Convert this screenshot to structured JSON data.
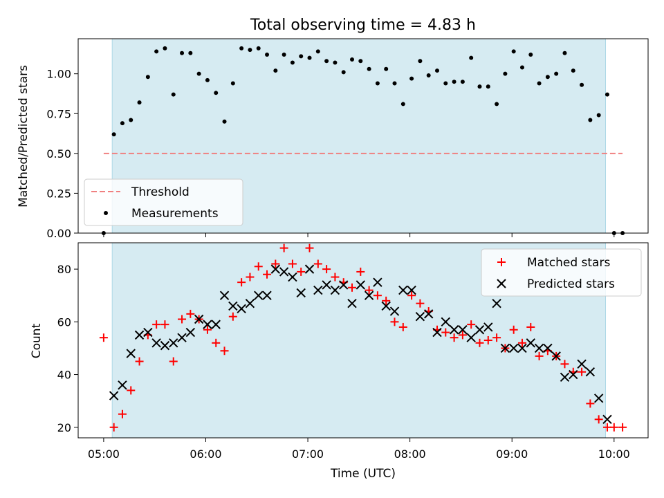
{
  "figure_title": "Total observing time = 4.83 h",
  "chart_data": [
    {
      "type": "scatter",
      "ylabel": "Matched/Predicted stars",
      "xlim": [
        "04:45",
        "10:20"
      ],
      "ylim": [
        0,
        1.22
      ],
      "yticks": [
        "0.00",
        "0.25",
        "0.50",
        "0.75",
        "1.00"
      ],
      "shaded_span": [
        "05:05",
        "09:55"
      ],
      "legend_position": "lower-left",
      "threshold": {
        "name": "Threshold",
        "y": 0.5,
        "x_range": [
          "05:00",
          "10:05"
        ],
        "color": "#f08080",
        "style": "dashed"
      },
      "measurements": {
        "name": "Measurements",
        "color": "#000000",
        "points": [
          [
            "05:00",
            0.0
          ],
          [
            "05:06",
            0.62
          ],
          [
            "05:11",
            0.69
          ],
          [
            "05:16",
            0.71
          ],
          [
            "05:21",
            0.82
          ],
          [
            "05:26",
            0.98
          ],
          [
            "05:31",
            1.14
          ],
          [
            "05:36",
            1.16
          ],
          [
            "05:41",
            0.87
          ],
          [
            "05:46",
            1.13
          ],
          [
            "05:51",
            1.13
          ],
          [
            "05:56",
            1.0
          ],
          [
            "06:01",
            0.96
          ],
          [
            "06:06",
            0.88
          ],
          [
            "06:11",
            0.7
          ],
          [
            "06:16",
            0.94
          ],
          [
            "06:21",
            1.16
          ],
          [
            "06:26",
            1.15
          ],
          [
            "06:31",
            1.16
          ],
          [
            "06:36",
            1.12
          ],
          [
            "06:41",
            1.02
          ],
          [
            "06:46",
            1.12
          ],
          [
            "06:51",
            1.07
          ],
          [
            "06:56",
            1.11
          ],
          [
            "07:01",
            1.1
          ],
          [
            "07:06",
            1.14
          ],
          [
            "07:11",
            1.08
          ],
          [
            "07:16",
            1.07
          ],
          [
            "07:21",
            1.01
          ],
          [
            "07:26",
            1.09
          ],
          [
            "07:31",
            1.08
          ],
          [
            "07:36",
            1.03
          ],
          [
            "07:41",
            0.94
          ],
          [
            "07:46",
            1.03
          ],
          [
            "07:51",
            0.94
          ],
          [
            "07:56",
            0.81
          ],
          [
            "08:01",
            0.97
          ],
          [
            "08:06",
            1.08
          ],
          [
            "08:11",
            0.99
          ],
          [
            "08:16",
            1.02
          ],
          [
            "08:21",
            0.94
          ],
          [
            "08:26",
            0.95
          ],
          [
            "08:31",
            0.95
          ],
          [
            "08:36",
            1.1
          ],
          [
            "08:41",
            0.92
          ],
          [
            "08:46",
            0.92
          ],
          [
            "08:51",
            0.81
          ],
          [
            "08:56",
            1.0
          ],
          [
            "09:01",
            1.14
          ],
          [
            "09:06",
            1.04
          ],
          [
            "09:11",
            1.12
          ],
          [
            "09:16",
            0.94
          ],
          [
            "09:21",
            0.98
          ],
          [
            "09:26",
            1.0
          ],
          [
            "09:31",
            1.13
          ],
          [
            "09:36",
            1.02
          ],
          [
            "09:41",
            0.93
          ],
          [
            "09:46",
            0.71
          ],
          [
            "09:51",
            0.74
          ],
          [
            "09:56",
            0.87
          ],
          [
            "10:00",
            0.0
          ],
          [
            "10:05",
            0.0
          ]
        ]
      }
    },
    {
      "type": "scatter",
      "xlabel": "Time (UTC)",
      "ylabel": "Count",
      "xlim": [
        "04:45",
        "10:20"
      ],
      "ylim": [
        16,
        90
      ],
      "xticks": [
        "05:00",
        "06:00",
        "07:00",
        "08:00",
        "09:00",
        "10:00"
      ],
      "yticks": [
        "20",
        "40",
        "60",
        "80"
      ],
      "shaded_span": [
        "05:05",
        "09:55"
      ],
      "legend_position": "upper-right",
      "series": [
        {
          "name": "Matched stars",
          "marker": "plus",
          "color": "#ff0000",
          "points": [
            [
              "05:00",
              54
            ],
            [
              "05:06",
              20
            ],
            [
              "05:11",
              25
            ],
            [
              "05:16",
              34
            ],
            [
              "05:21",
              45
            ],
            [
              "05:26",
              55
            ],
            [
              "05:31",
              59
            ],
            [
              "05:36",
              59
            ],
            [
              "05:41",
              45
            ],
            [
              "05:46",
              61
            ],
            [
              "05:51",
              63
            ],
            [
              "05:56",
              61
            ],
            [
              "06:01",
              57
            ],
            [
              "06:06",
              52
            ],
            [
              "06:11",
              49
            ],
            [
              "06:16",
              62
            ],
            [
              "06:21",
              75
            ],
            [
              "06:26",
              77
            ],
            [
              "06:31",
              81
            ],
            [
              "06:36",
              78
            ],
            [
              "06:41",
              82
            ],
            [
              "06:46",
              88
            ],
            [
              "06:51",
              82
            ],
            [
              "06:56",
              79
            ],
            [
              "07:01",
              88
            ],
            [
              "07:06",
              82
            ],
            [
              "07:11",
              80
            ],
            [
              "07:16",
              77
            ],
            [
              "07:21",
              75
            ],
            [
              "07:26",
              73
            ],
            [
              "07:31",
              79
            ],
            [
              "07:36",
              72
            ],
            [
              "07:41",
              70
            ],
            [
              "07:46",
              68
            ],
            [
              "07:51",
              60
            ],
            [
              "07:56",
              58
            ],
            [
              "08:01",
              70
            ],
            [
              "08:06",
              67
            ],
            [
              "08:11",
              64
            ],
            [
              "08:16",
              57
            ],
            [
              "08:21",
              56
            ],
            [
              "08:26",
              54
            ],
            [
              "08:31",
              55
            ],
            [
              "08:36",
              59
            ],
            [
              "08:41",
              52
            ],
            [
              "08:46",
              53
            ],
            [
              "08:51",
              54
            ],
            [
              "08:56",
              50
            ],
            [
              "09:01",
              57
            ],
            [
              "09:06",
              52
            ],
            [
              "09:11",
              58
            ],
            [
              "09:16",
              47
            ],
            [
              "09:21",
              49
            ],
            [
              "09:26",
              47
            ],
            [
              "09:31",
              44
            ],
            [
              "09:36",
              41
            ],
            [
              "09:41",
              41
            ],
            [
              "09:46",
              29
            ],
            [
              "09:51",
              23
            ],
            [
              "09:56",
              20
            ],
            [
              "10:00",
              20
            ],
            [
              "10:05",
              20
            ]
          ]
        },
        {
          "name": "Predicted stars",
          "marker": "x",
          "color": "#000000",
          "points": [
            [
              "05:06",
              32
            ],
            [
              "05:11",
              36
            ],
            [
              "05:16",
              48
            ],
            [
              "05:21",
              55
            ],
            [
              "05:26",
              56
            ],
            [
              "05:31",
              52
            ],
            [
              "05:36",
              51
            ],
            [
              "05:41",
              52
            ],
            [
              "05:46",
              54
            ],
            [
              "05:51",
              56
            ],
            [
              "05:56",
              61
            ],
            [
              "06:01",
              59
            ],
            [
              "06:06",
              59
            ],
            [
              "06:11",
              70
            ],
            [
              "06:16",
              66
            ],
            [
              "06:21",
              65
            ],
            [
              "06:26",
              67
            ],
            [
              "06:31",
              70
            ],
            [
              "06:36",
              70
            ],
            [
              "06:41",
              80
            ],
            [
              "06:46",
              79
            ],
            [
              "06:51",
              77
            ],
            [
              "06:56",
              71
            ],
            [
              "07:01",
              80
            ],
            [
              "07:06",
              72
            ],
            [
              "07:11",
              74
            ],
            [
              "07:16",
              72
            ],
            [
              "07:21",
              74
            ],
            [
              "07:26",
              67
            ],
            [
              "07:31",
              74
            ],
            [
              "07:36",
              70
            ],
            [
              "07:41",
              75
            ],
            [
              "07:46",
              66
            ],
            [
              "07:51",
              64
            ],
            [
              "07:56",
              72
            ],
            [
              "08:01",
              72
            ],
            [
              "08:06",
              62
            ],
            [
              "08:11",
              63
            ],
            [
              "08:16",
              56
            ],
            [
              "08:21",
              60
            ],
            [
              "08:26",
              57
            ],
            [
              "08:31",
              57
            ],
            [
              "08:36",
              54
            ],
            [
              "08:41",
              57
            ],
            [
              "08:46",
              58
            ],
            [
              "08:51",
              67
            ],
            [
              "08:56",
              50
            ],
            [
              "09:01",
              50
            ],
            [
              "09:06",
              50
            ],
            [
              "09:11",
              52
            ],
            [
              "09:16",
              50
            ],
            [
              "09:21",
              50
            ],
            [
              "09:26",
              47
            ],
            [
              "09:31",
              39
            ],
            [
              "09:36",
              40
            ],
            [
              "09:41",
              44
            ],
            [
              "09:46",
              41
            ],
            [
              "09:51",
              31
            ],
            [
              "09:56",
              23
            ]
          ]
        }
      ]
    }
  ]
}
